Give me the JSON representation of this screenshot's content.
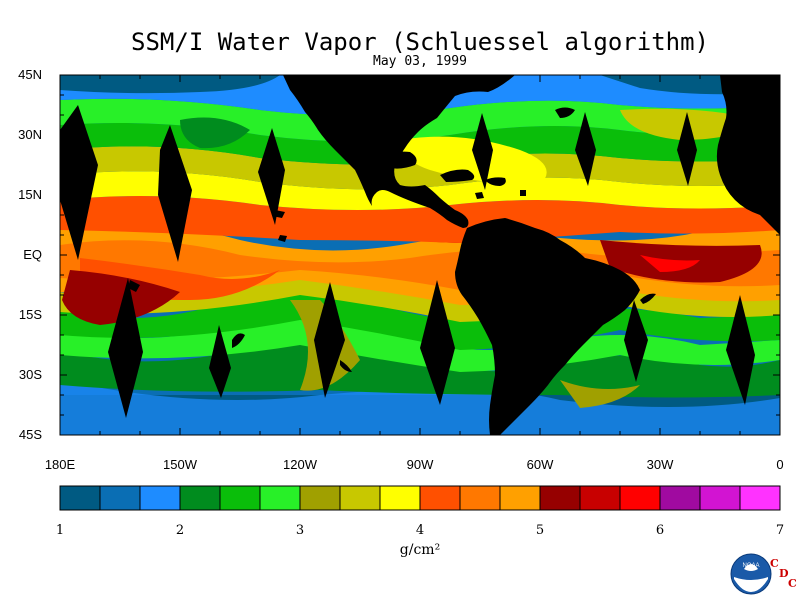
{
  "map": {
    "title": "SSM/I Water Vapor (Schluessel algorithm)",
    "date": "May 03, 1999",
    "lat_labels": [
      {
        "label": "45N",
        "lat": 45
      },
      {
        "label": "30N",
        "lat": 30
      },
      {
        "label": "15N",
        "lat": 15
      },
      {
        "label": "EQ",
        "lat": 0
      },
      {
        "label": "15S",
        "lat": -15
      },
      {
        "label": "30S",
        "lat": -30
      },
      {
        "label": "45S",
        "lat": -45
      }
    ],
    "lon_labels": [
      {
        "label": "180E",
        "lon": -180
      },
      {
        "label": "150W",
        "lon": -150
      },
      {
        "label": "120W",
        "lon": -120
      },
      {
        "label": "90W",
        "lon": -90
      },
      {
        "label": "60W",
        "lon": -60
      },
      {
        "label": "30W",
        "lon": -30
      },
      {
        "label": "0",
        "lon": 0
      }
    ],
    "extent": {
      "lon_min": -180,
      "lon_max": 0,
      "lat_min": -45,
      "lat_max": 45
    },
    "land_color": "#000000",
    "missing_swath_color": "#000000"
  },
  "colorbar": {
    "unit": "g/cm²",
    "min": 1,
    "max": 7,
    "ticks": [
      "1",
      "2",
      "3",
      "4",
      "5",
      "6",
      "7"
    ],
    "colors": [
      "#005a82",
      "#0a6eb4",
      "#1e8cff",
      "#008c1e",
      "#0abe0a",
      "#28f028",
      "#a0a000",
      "#c8c800",
      "#ffff00",
      "#ff5000",
      "#ff7800",
      "#ffa000",
      "#960000",
      "#c80000",
      "#ff0000",
      "#a00aa0",
      "#d214d2",
      "#ff32ff"
    ]
  },
  "logo": {
    "emblem_text": "NOAA",
    "letters": [
      "C",
      "D",
      "C"
    ]
  }
}
